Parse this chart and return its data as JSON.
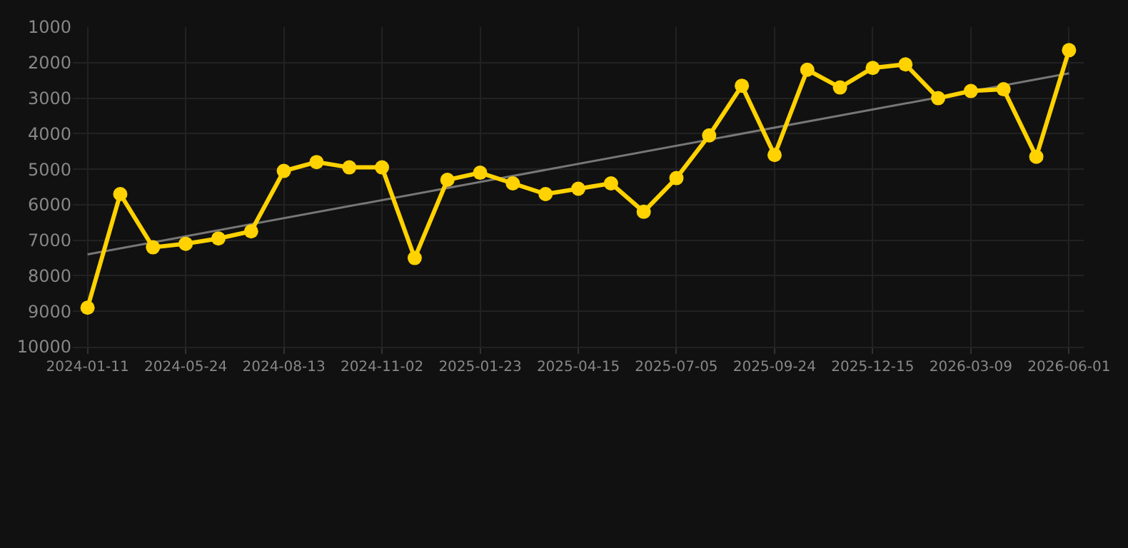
{
  "chart_data": {
    "type": "line",
    "categories": [
      "2024-01-11",
      null,
      null,
      "2024-05-24",
      null,
      null,
      "2024-08-13",
      null,
      null,
      "2024-11-02",
      null,
      null,
      "2025-01-23",
      null,
      null,
      "2025-04-15",
      null,
      null,
      "2025-07-05",
      null,
      null,
      "2025-09-24",
      null,
      null,
      "2025-12-15",
      null,
      null,
      "2026-03-09",
      null,
      null,
      "2026-06-01"
    ],
    "series": [
      {
        "color": "#ffd200",
        "marker": "circle",
        "values": [
          8900,
          5700,
          7200,
          7100,
          6950,
          6750,
          5050,
          4800,
          4950,
          4950,
          7500,
          5300,
          5100,
          5400,
          5700,
          5550,
          5400,
          6200,
          5250,
          4050,
          2650,
          4600,
          2200,
          2700,
          2150,
          2050,
          3000,
          2800,
          2750,
          4650,
          1650
        ]
      },
      {
        "type": "line",
        "color": "#777777",
        "marker": "none",
        "values": [
          7400,
          null,
          null,
          null,
          null,
          null,
          null,
          null,
          null,
          null,
          null,
          null,
          null,
          null,
          null,
          null,
          null,
          null,
          null,
          null,
          null,
          null,
          null,
          null,
          null,
          null,
          null,
          null,
          null,
          null,
          2300
        ]
      }
    ],
    "ylim": [
      10000,
      1000
    ],
    "yticks": [
      1000,
      2000,
      3000,
      4000,
      5000,
      6000,
      7000,
      8000,
      9000,
      10000
    ],
    "grid": true,
    "line_style": "solid"
  }
}
